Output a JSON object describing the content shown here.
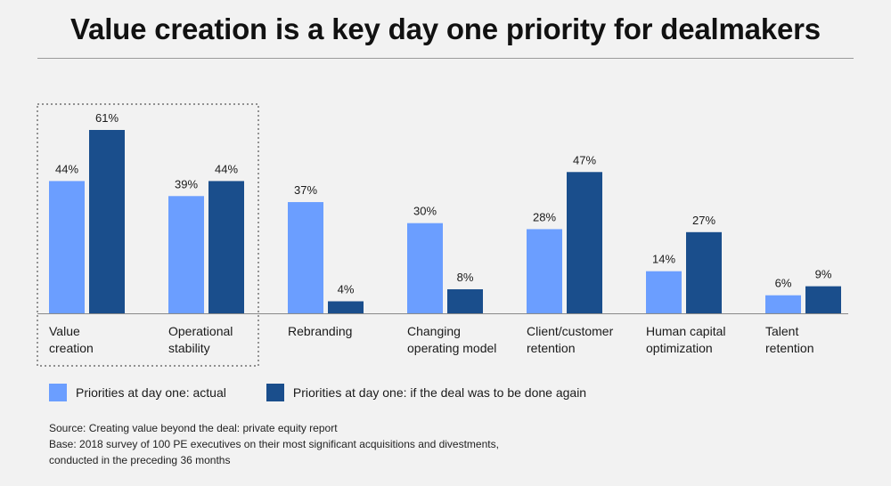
{
  "title": "Value creation is a key day one priority for dealmakers",
  "colors": {
    "actual": "#6b9eff",
    "again": "#1a4e8c",
    "axis": "#8a8a8a",
    "highlight_border": "#555555"
  },
  "chart_data": {
    "type": "bar",
    "title": "Value creation is a key day one priority for dealmakers",
    "categories": [
      [
        "Value",
        "creation"
      ],
      [
        "Operational",
        "stability"
      ],
      [
        "Rebranding"
      ],
      [
        "Changing",
        "operating model"
      ],
      [
        "Client/customer",
        "retention"
      ],
      [
        "Human capital",
        "optimization"
      ],
      [
        "Talent",
        "retention"
      ]
    ],
    "series": [
      {
        "name": "Priorities at day one: actual",
        "values": [
          44,
          39,
          37,
          30,
          28,
          14,
          6
        ]
      },
      {
        "name": "Priorities at day one: if the deal was to be done again",
        "values": [
          61,
          44,
          4,
          8,
          47,
          27,
          9
        ]
      }
    ],
    "value_suffix": "%",
    "ylim": [
      0,
      70
    ],
    "grid": false,
    "highlighted_categories": [
      0,
      1
    ],
    "legend_position": "bottom-left"
  },
  "legend": {
    "actual_label": "Priorities at day one: actual",
    "again_label": "Priorities at day one: if the deal was to be done again"
  },
  "source": {
    "line1": "Source: Creating value beyond the deal: private equity report",
    "line2": "Base: 2018 survey of 100 PE executives on their most significant acquisitions and divestments,",
    "line3": "conducted in the preceding 36 months"
  }
}
